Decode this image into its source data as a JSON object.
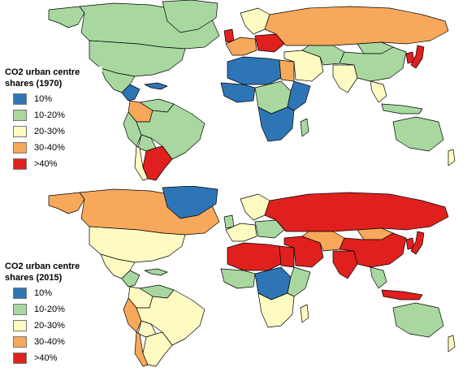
{
  "maps": [
    {
      "id": "1970",
      "legend_title": "CO2 urban centre shares (1970)",
      "regions": {
        "canada": "c1",
        "greenland": "c1",
        "usa": "c1",
        "alaska": "c1",
        "mexico": "c1",
        "central_america": "c0",
        "caribbean": "c0",
        "venezuela": "c1",
        "colombia": "c3",
        "brazil": "c1",
        "peru": "c1",
        "bolivia": "c1",
        "chile": "c2",
        "argentina": "c4",
        "western_europe": "c3",
        "uk": "c4",
        "scandinavia": "c2",
        "eastern_europe": "c4",
        "russia": "c3",
        "north_africa": "c0",
        "egypt": "c3",
        "west_africa": "c0",
        "central_africa": "c1",
        "east_africa": "c0",
        "southern_africa": "c0",
        "madagascar": "c1",
        "middle_east": "c2",
        "central_asia": "c1",
        "india": "c2",
        "china": "c1",
        "mongolia": "c1",
        "japan": "c4",
        "korea": "c4",
        "southeast_asia": "c2",
        "indonesia": "c1",
        "australia": "c1",
        "new_zealand": "c2"
      }
    },
    {
      "id": "2015",
      "legend_title": "CO2 urban centre shares (2015)",
      "regions": {
        "canada": "c3",
        "greenland": "c0",
        "usa": "c2",
        "alaska": "c3",
        "mexico": "c2",
        "central_america": "c1",
        "caribbean": "c1",
        "venezuela": "c1",
        "colombia": "c2",
        "brazil": "c2",
        "peru": "c3",
        "bolivia": "c2",
        "chile": "c3",
        "argentina": "c2",
        "western_europe": "c2",
        "uk": "c1",
        "scandinavia": "c2",
        "eastern_europe": "c1",
        "russia": "c4",
        "north_africa": "c4",
        "egypt": "c4",
        "west_africa": "c1",
        "central_africa": "c0",
        "east_africa": "c1",
        "southern_africa": "c2",
        "madagascar": "c2",
        "middle_east": "c4",
        "central_asia": "c3",
        "india": "c4",
        "china": "c4",
        "mongolia": "c3",
        "japan": "c4",
        "korea": "c4",
        "southeast_asia": "c1",
        "indonesia": "c4",
        "australia": "c1",
        "new_zealand": "c2"
      }
    }
  ],
  "legend_classes": [
    {
      "key": "c0",
      "label": "10%",
      "color": "#2e75b6"
    },
    {
      "key": "c1",
      "label": "10-20%",
      "color": "#a8d8a0"
    },
    {
      "key": "c2",
      "label": "20-30%",
      "color": "#fefbc2"
    },
    {
      "key": "c3",
      "label": "30-40%",
      "color": "#f7a85a"
    },
    {
      "key": "c4",
      "label": ">40%",
      "color": "#e0201e"
    }
  ]
}
